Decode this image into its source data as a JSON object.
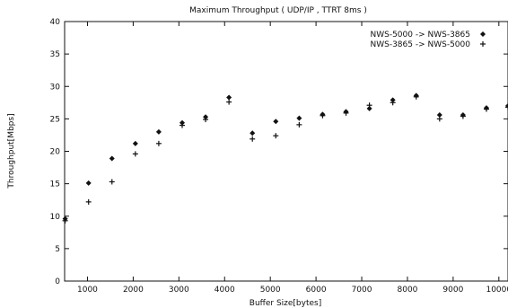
{
  "chart_data": {
    "type": "scatter",
    "title": "Maximum Throughput ( UDP/IP , TTRT 8ms )",
    "xlabel": "Buffer Size[bytes]",
    "ylabel": "Throughput[Mbps]",
    "xlim": [
      500,
      10200
    ],
    "ylim": [
      0,
      40
    ],
    "xticks": [
      1000,
      2000,
      3000,
      4000,
      5000,
      6000,
      7000,
      8000,
      9000,
      10000
    ],
    "yticks": [
      0,
      5,
      10,
      15,
      20,
      25,
      30,
      35,
      40
    ],
    "grid": false,
    "legend_position": "top-right",
    "series": [
      {
        "name": "NWS-5000 -> NWS-3865",
        "marker": "diamond",
        "x": [
          512,
          1024,
          1536,
          2048,
          2560,
          3072,
          3584,
          4096,
          4608,
          5120,
          5632,
          6144,
          6656,
          7168,
          7680,
          8192,
          8704,
          9216,
          9728,
          10200
        ],
        "y": [
          9.6,
          15.1,
          18.9,
          21.2,
          23.0,
          24.4,
          25.3,
          28.3,
          22.8,
          24.6,
          25.1,
          25.7,
          26.1,
          26.6,
          27.9,
          28.6,
          25.6,
          25.6,
          26.7,
          27.0
        ]
      },
      {
        "name": "NWS-3865 -> NWS-5000",
        "marker": "plus",
        "x": [
          512,
          1024,
          1536,
          2048,
          2560,
          3072,
          3584,
          4096,
          4608,
          5120,
          5632,
          6144,
          6656,
          7168,
          7680,
          8192,
          8704,
          9216,
          9728,
          10200
        ],
        "y": [
          9.3,
          12.2,
          15.3,
          19.6,
          21.2,
          24.0,
          24.9,
          27.6,
          21.9,
          22.4,
          24.1,
          25.5,
          25.9,
          27.1,
          27.5,
          28.4,
          25.0,
          25.4,
          26.5,
          26.8
        ]
      }
    ]
  }
}
